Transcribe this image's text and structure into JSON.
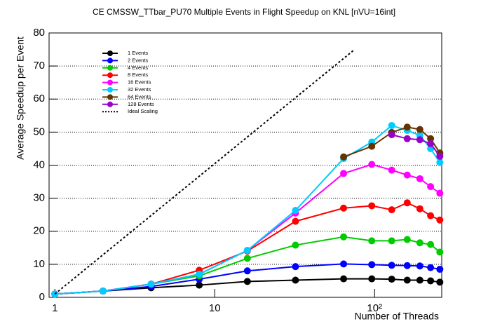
{
  "chart_data": {
    "type": "line",
    "title": "CE CMSSW_TTbar_PU70 Multiple Events in Flight Speedup on KNL [nVU=16int]",
    "x_label": "Number of Threads",
    "y_label": "Average Speedup per Event",
    "log_x": true,
    "grid": true,
    "legend": "upper-left",
    "x": [
      1,
      2,
      4,
      8,
      16,
      32,
      64,
      96,
      128,
      160,
      192,
      224,
      256
    ],
    "xlim": [
      0.92,
      263
    ],
    "xticks": [
      1,
      10,
      {
        "value": 100,
        "label": "10²"
      }
    ],
    "ylim": [
      0,
      80
    ],
    "yticks": [
      0,
      10,
      20,
      30,
      40,
      50,
      60,
      70,
      80
    ],
    "series": [
      {
        "name": "1 Events",
        "color": "#000000",
        "values": [
          1,
          1.9,
          2.9,
          3.7,
          4.8,
          5.2,
          5.6,
          5.6,
          5.5,
          5.2,
          5.2,
          5.0,
          4.6
        ]
      },
      {
        "name": "2 Events",
        "color": "#0000ff",
        "values": [
          1,
          1.9,
          3.3,
          5.5,
          8.0,
          9.3,
          10.1,
          9.9,
          9.7,
          9.6,
          9.5,
          9.0,
          8.5
        ]
      },
      {
        "name": "4 Events",
        "color": "#00cc00",
        "values": [
          1,
          1.9,
          4.0,
          6.5,
          11.8,
          15.8,
          18.3,
          17.1,
          17.1,
          17.5,
          16.5,
          16.0,
          13.7
        ]
      },
      {
        "name": "8 Events",
        "color": "#ff0000",
        "values": [
          1,
          1.9,
          4.0,
          8.2,
          14.0,
          23.0,
          27.0,
          27.7,
          26.5,
          28.6,
          26.8,
          24.7,
          23.4
        ]
      },
      {
        "name": "16 Events",
        "color": "#ff00ff",
        "values": [
          1,
          1.9,
          4.0,
          7.0,
          14.2,
          25.5,
          37.5,
          40.2,
          38.5,
          37.0,
          35.9,
          33.5,
          31.5
        ]
      },
      {
        "name": "32 Events",
        "color": "#00ccff",
        "values": [
          1,
          1.9,
          4.0,
          7.0,
          14.2,
          26.3,
          42.0,
          47.0,
          52.0,
          50.5,
          49.0,
          45.0,
          40.8
        ]
      },
      {
        "name": "64 Events",
        "color": "#663300",
        "values": [
          null,
          null,
          null,
          null,
          null,
          null,
          42.5,
          45.7,
          49.9,
          51.5,
          50.8,
          48.0,
          43.7
        ]
      },
      {
        "name": "128 Events",
        "color": "#9900cc",
        "values": [
          null,
          null,
          null,
          null,
          null,
          null,
          null,
          null,
          49.2,
          48.0,
          47.7,
          46.5,
          42.7
        ]
      },
      {
        "name": "Ideal Scaling",
        "color": "#000000",
        "style": "dotted",
        "x": [
          1,
          75
        ],
        "values": [
          1,
          75
        ]
      }
    ]
  }
}
